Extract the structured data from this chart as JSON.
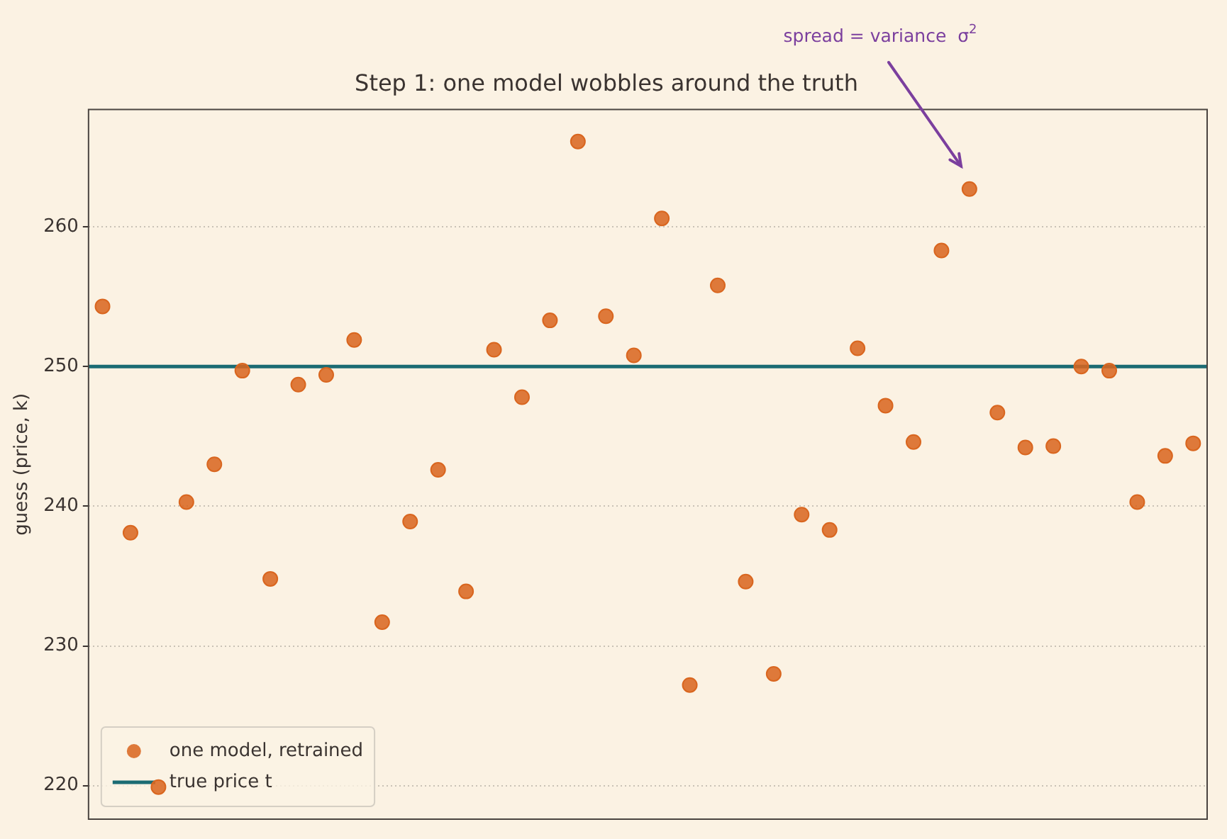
{
  "chart_data": {
    "type": "scatter",
    "title": "Step 1: one model wobbles around the truth",
    "ylabel": "guess (price, k)",
    "categories": [
      null,
      null,
      null,
      null,
      null,
      null,
      null,
      null,
      null,
      null,
      null,
      null,
      null,
      null,
      null,
      null,
      null,
      null,
      null,
      null,
      null,
      null,
      null,
      null,
      null,
      null,
      null,
      null,
      null,
      null,
      null,
      null,
      null,
      null,
      null,
      null,
      null,
      null,
      null,
      null
    ],
    "series": [
      {
        "name": "one model, retrained",
        "color": "#d9661f",
        "values": [
          254.3,
          238.1,
          219.9,
          240.3,
          243.0,
          249.7,
          234.8,
          248.7,
          249.4,
          251.9,
          231.7,
          238.9,
          242.6,
          233.9,
          251.2,
          247.8,
          253.3,
          266.1,
          253.6,
          250.8,
          260.6,
          227.2,
          255.8,
          234.6,
          228.0,
          239.4,
          238.3,
          251.3,
          247.2,
          244.6,
          258.3,
          262.7,
          246.7,
          244.2,
          244.3,
          250.0,
          249.7,
          240.3,
          243.6,
          244.5
        ]
      }
    ],
    "ref_lines": [
      {
        "axis": "y",
        "value": 250,
        "label": "true price t",
        "color": "#1b6b73"
      }
    ],
    "annotations": [
      "spread = variance  σ$^{2}$"
    ],
    "ylim": [
      217.6,
      268.4
    ],
    "yticks": [
      220,
      230,
      240,
      250,
      260
    ],
    "tick_labels": "y",
    "grid": "y",
    "legend": "bottom left",
    "marker": "circle"
  }
}
